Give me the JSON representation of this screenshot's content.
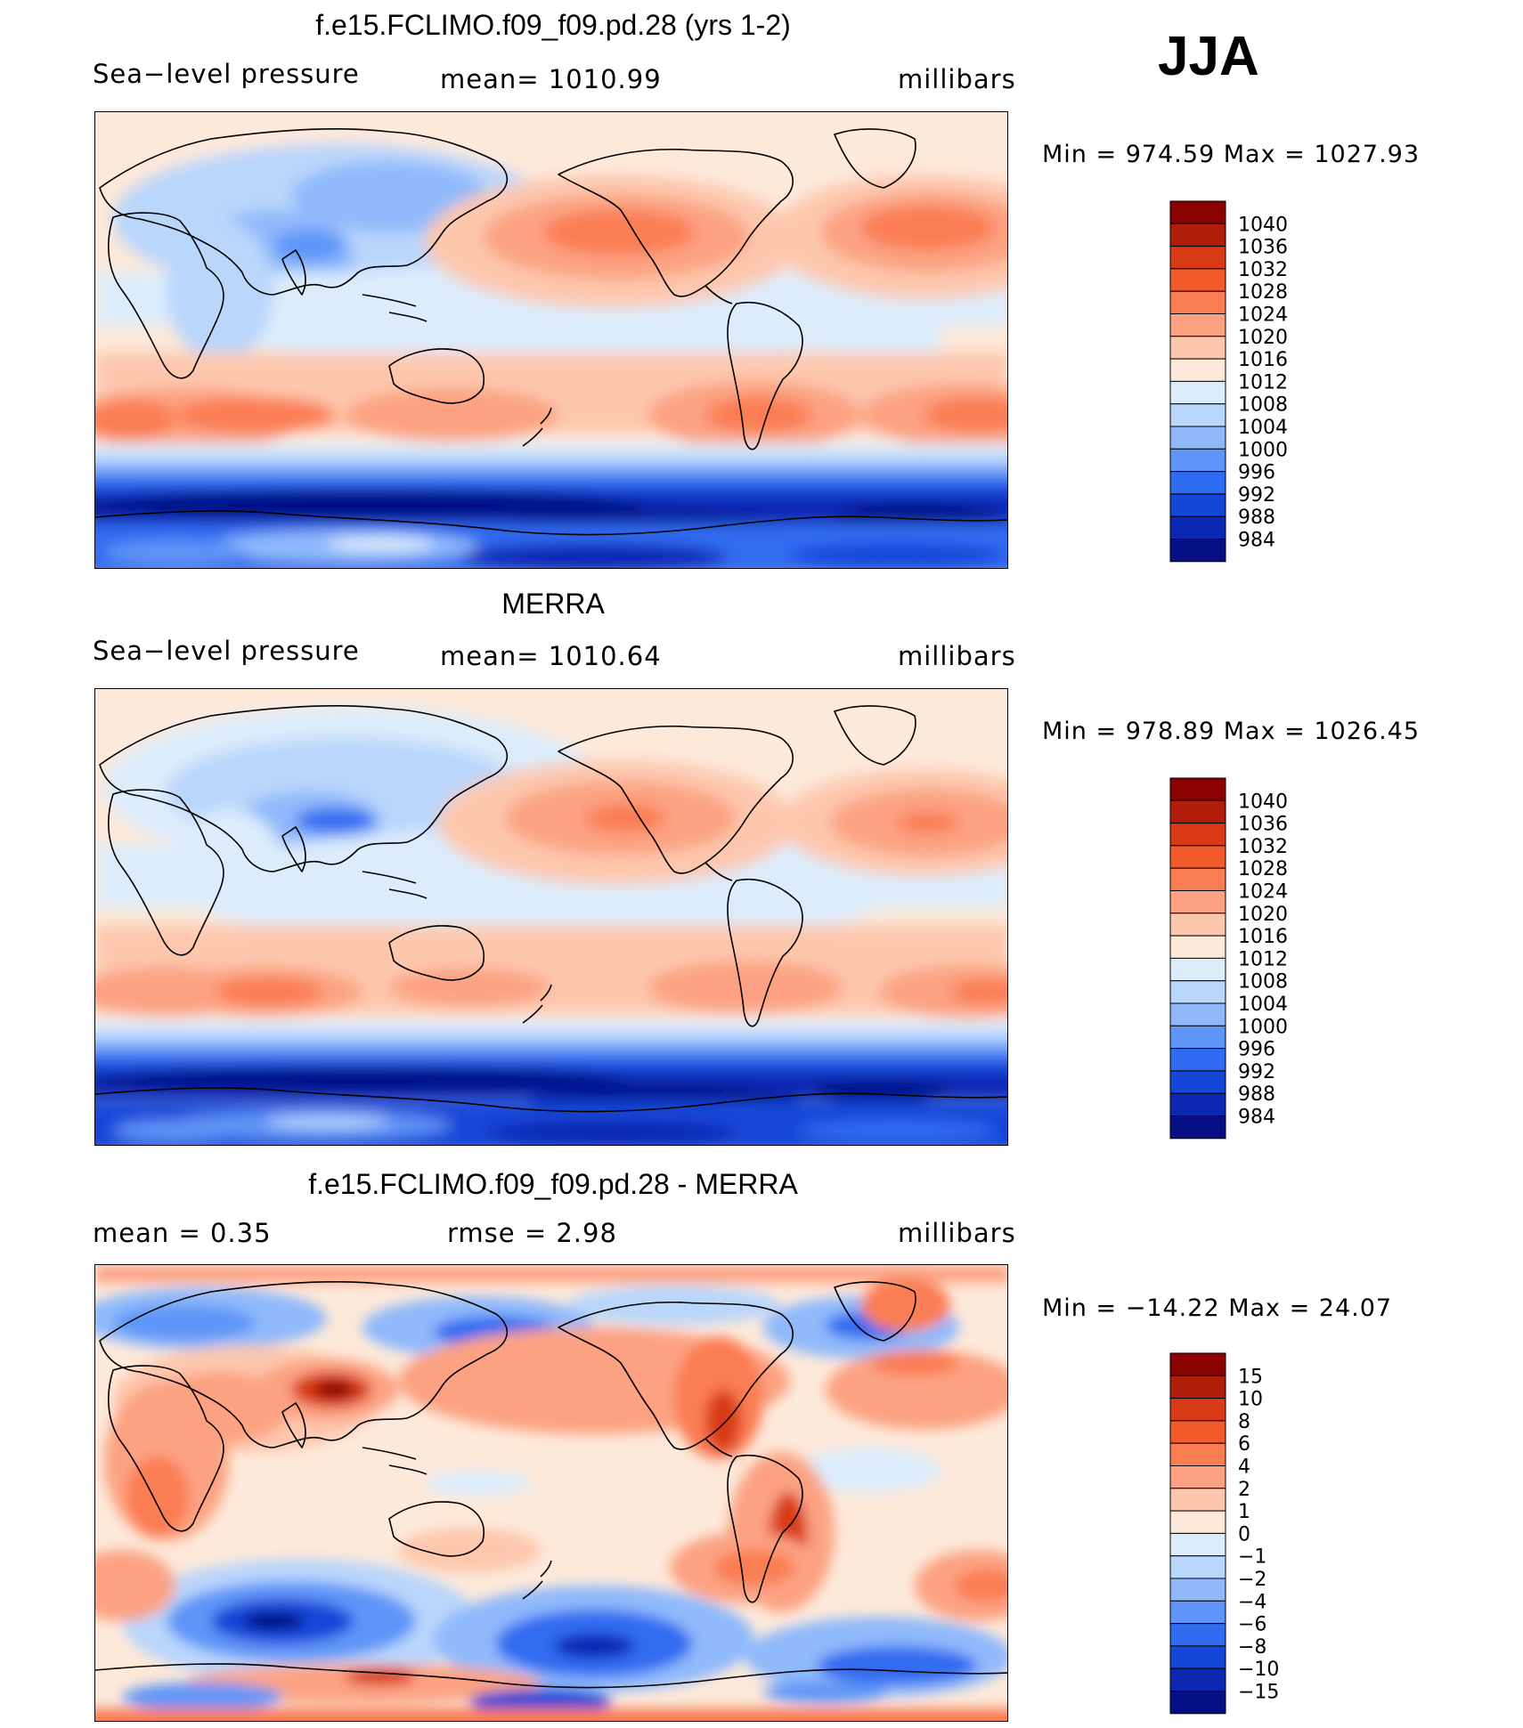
{
  "season": "JJA",
  "panels": [
    {
      "title": "f.e15.FCLIMO.f09_f09.pd.28 (yrs 1-2)",
      "left_label": "Sea−level pressure",
      "center_label": "mean=  1010.99",
      "units": "millibars",
      "minmax": "Min  =  974.59  Max  =  1027.93"
    },
    {
      "title": "MERRA",
      "left_label": "Sea−level pressure",
      "center_label": "mean=  1010.64",
      "units": "millibars",
      "minmax": "Min  =  978.89  Max  =  1026.45"
    },
    {
      "title": "f.e15.FCLIMO.f09_f09.pd.28 - MERRA",
      "left_label": "mean  =     0.35",
      "center_label": "rmse  =     2.98",
      "units": "millibars",
      "minmax": "Min  =  −14.22  Max  =    24.07"
    }
  ],
  "chart_data": [
    {
      "type": "heatmap",
      "title": "f.e15.FCLIMO.f09_f09.pd.28 (yrs 1-2)",
      "variable": "Sea-level pressure",
      "units": "millibars",
      "mean": 1010.99,
      "min": 974.59,
      "max": 1027.93,
      "colorbar_levels": [
        "1040",
        "1036",
        "1032",
        "1028",
        "1024",
        "1020",
        "1016",
        "1012",
        "1008",
        "1004",
        "1000",
        "996",
        "992",
        "988",
        "984"
      ],
      "colorbar_colors": [
        "#8b0000",
        "#b01e0a",
        "#d93a16",
        "#f2592b",
        "#fb7d52",
        "#fca282",
        "#fdc7ad",
        "#fde9da",
        "#dcecfb",
        "#b9d6fb",
        "#8fb9fb",
        "#5f95f8",
        "#306cf1",
        "#1446d8",
        "#0b28b3",
        "#060f85"
      ]
    },
    {
      "type": "heatmap",
      "title": "MERRA",
      "variable": "Sea-level pressure",
      "units": "millibars",
      "mean": 1010.64,
      "min": 978.89,
      "max": 1026.45,
      "colorbar_levels": [
        "1040",
        "1036",
        "1032",
        "1028",
        "1024",
        "1020",
        "1016",
        "1012",
        "1008",
        "1004",
        "1000",
        "996",
        "992",
        "988",
        "984"
      ],
      "colorbar_colors": [
        "#8b0000",
        "#b01e0a",
        "#d93a16",
        "#f2592b",
        "#fb7d52",
        "#fca282",
        "#fdc7ad",
        "#fde9da",
        "#dcecfb",
        "#b9d6fb",
        "#8fb9fb",
        "#5f95f8",
        "#306cf1",
        "#1446d8",
        "#0b28b3",
        "#060f85"
      ]
    },
    {
      "type": "heatmap",
      "title": "f.e15.FCLIMO.f09_f09.pd.28 - MERRA",
      "variable": "Sea-level pressure difference",
      "units": "millibars",
      "mean": 0.35,
      "rmse": 2.98,
      "min": -14.22,
      "max": 24.07,
      "colorbar_levels": [
        "15",
        "10",
        "8",
        "6",
        "4",
        "2",
        "1",
        "0",
        "−1",
        "−2",
        "−4",
        "−6",
        "−8",
        "−10",
        "−15"
      ],
      "colorbar_colors": [
        "#8b0000",
        "#b01e0a",
        "#d93a16",
        "#f2592b",
        "#fb7d52",
        "#fca282",
        "#fdc7ad",
        "#fde9da",
        "#dcecfb",
        "#b9d6fb",
        "#8fb9fb",
        "#5f95f8",
        "#306cf1",
        "#1446d8",
        "#0b28b3",
        "#060f85"
      ]
    }
  ]
}
